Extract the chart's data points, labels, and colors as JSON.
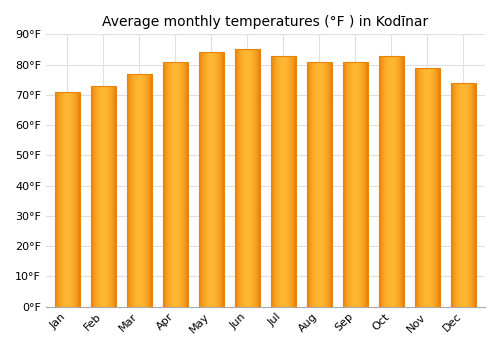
{
  "title": "Average monthly temperatures (°F ) in Kodīnar",
  "months": [
    "Jan",
    "Feb",
    "Mar",
    "Apr",
    "May",
    "Jun",
    "Jul",
    "Aug",
    "Sep",
    "Oct",
    "Nov",
    "Dec"
  ],
  "values": [
    71,
    73,
    77,
    81,
    84,
    85,
    83,
    81,
    81,
    83,
    79,
    74
  ],
  "bar_color_center": "#FFB733",
  "bar_color_edge": "#E8820A",
  "background_color": "#ffffff",
  "ylim": [
    0,
    90
  ],
  "ytick_step": 10,
  "title_fontsize": 10,
  "tick_fontsize": 8,
  "grid_color": "#e0e0e0",
  "bar_width": 0.7
}
